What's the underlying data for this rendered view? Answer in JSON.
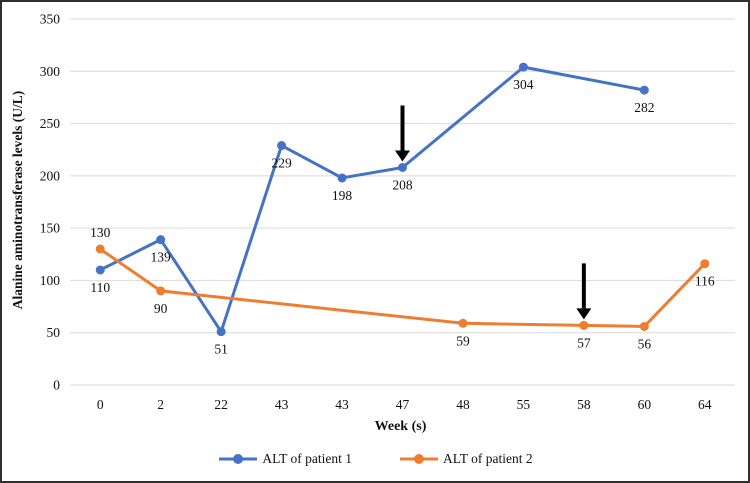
{
  "figure": {
    "background_color": "#ffffff",
    "frame_color": "#2f2f2f",
    "text_color": "#111111"
  },
  "chart_data": {
    "type": "line",
    "title": "",
    "xlabel": "Week (s)",
    "ylabel": "Alanine aminotransferase levels (U/L)",
    "categories": [
      "0",
      "2",
      "22",
      "43",
      "43",
      "47",
      "48",
      "55",
      "58",
      "60",
      "64"
    ],
    "ylim": [
      0,
      350
    ],
    "ytick_interval": 50,
    "yticks": [
      "0",
      "50",
      "100",
      "150",
      "200",
      "250",
      "300",
      "350"
    ],
    "grid": true,
    "gridline_color": "#d9d9d9",
    "legend_position": "bottom",
    "data_labels": true,
    "series": [
      {
        "name": "ALT of patient 1",
        "color": "#4472C4",
        "values": [
          110,
          139,
          51,
          229,
          198,
          208,
          null,
          304,
          null,
          282,
          null
        ]
      },
      {
        "name": "ALT of patient 2",
        "color": "#ED7D31",
        "values": [
          130,
          90,
          null,
          null,
          null,
          null,
          59,
          null,
          57,
          56,
          116
        ]
      }
    ],
    "label_overrides": [
      {
        "series": 1,
        "index": 0,
        "position": "above"
      }
    ],
    "annotations": [
      {
        "type": "down-arrow",
        "color": "#000000",
        "series": 0,
        "index": 5,
        "note": "black arrow pointing down at ALT 208, week 47"
      },
      {
        "type": "down-arrow",
        "color": "#000000",
        "series": 1,
        "index": 8,
        "note": "black arrow pointing down at ALT 57, week 58"
      }
    ]
  }
}
